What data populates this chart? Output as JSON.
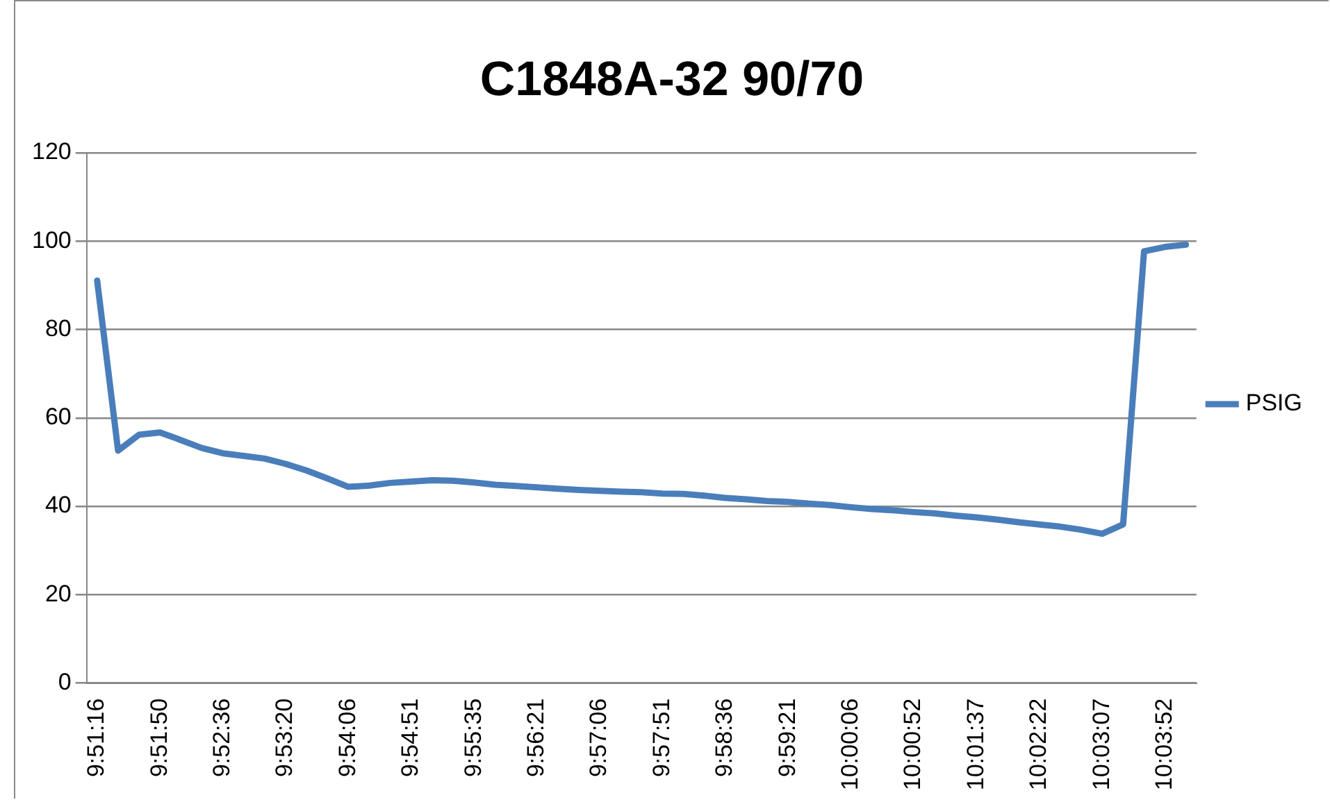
{
  "chart_data": {
    "type": "line",
    "title": "C1848A-32 90/70",
    "categories": [
      "9:51:16",
      null,
      null,
      "9:51:50",
      null,
      null,
      "9:52:36",
      null,
      null,
      "9:53:20",
      null,
      null,
      "9:54:06",
      null,
      null,
      "9:54:51",
      null,
      null,
      "9:55:35",
      null,
      null,
      "9:56:21",
      null,
      null,
      "9:57:06",
      null,
      null,
      "9:57:51",
      null,
      null,
      "9:58:36",
      null,
      null,
      "9:59:21",
      null,
      null,
      "10:00:06",
      null,
      null,
      "10:00:52",
      null,
      null,
      "10:01:37",
      null,
      null,
      "10:02:22",
      null,
      null,
      "10:03:07",
      null,
      null,
      "10:03:52",
      null
    ],
    "series": [
      {
        "name": "PSIG",
        "color": "#4a7ebb",
        "values": [
          91.1,
          52.6,
          56.2,
          56.7,
          55,
          53.2,
          52,
          51.4,
          50.8,
          49.6,
          48.1,
          46.3,
          44.4,
          44.7,
          45.3,
          45.6,
          45.9,
          45.8,
          45.4,
          44.9,
          44.6,
          44.3,
          44,
          43.7,
          43.5,
          43.3,
          43.2,
          42.9,
          42.8,
          42.4,
          41.9,
          41.6,
          41.2,
          41,
          40.6,
          40.3,
          39.8,
          39.4,
          39.1,
          38.7,
          38.4,
          37.9,
          37.5,
          37,
          36.4,
          35.9,
          35.4,
          34.7,
          33.8,
          35.9,
          97.7,
          98.7,
          99.2
        ]
      }
    ],
    "ylim": [
      0,
      120
    ],
    "yticks": [
      0,
      20,
      40,
      60,
      80,
      100,
      120
    ],
    "grid": "y",
    "legend": "right",
    "marker": "none",
    "line_style": "solid"
  }
}
